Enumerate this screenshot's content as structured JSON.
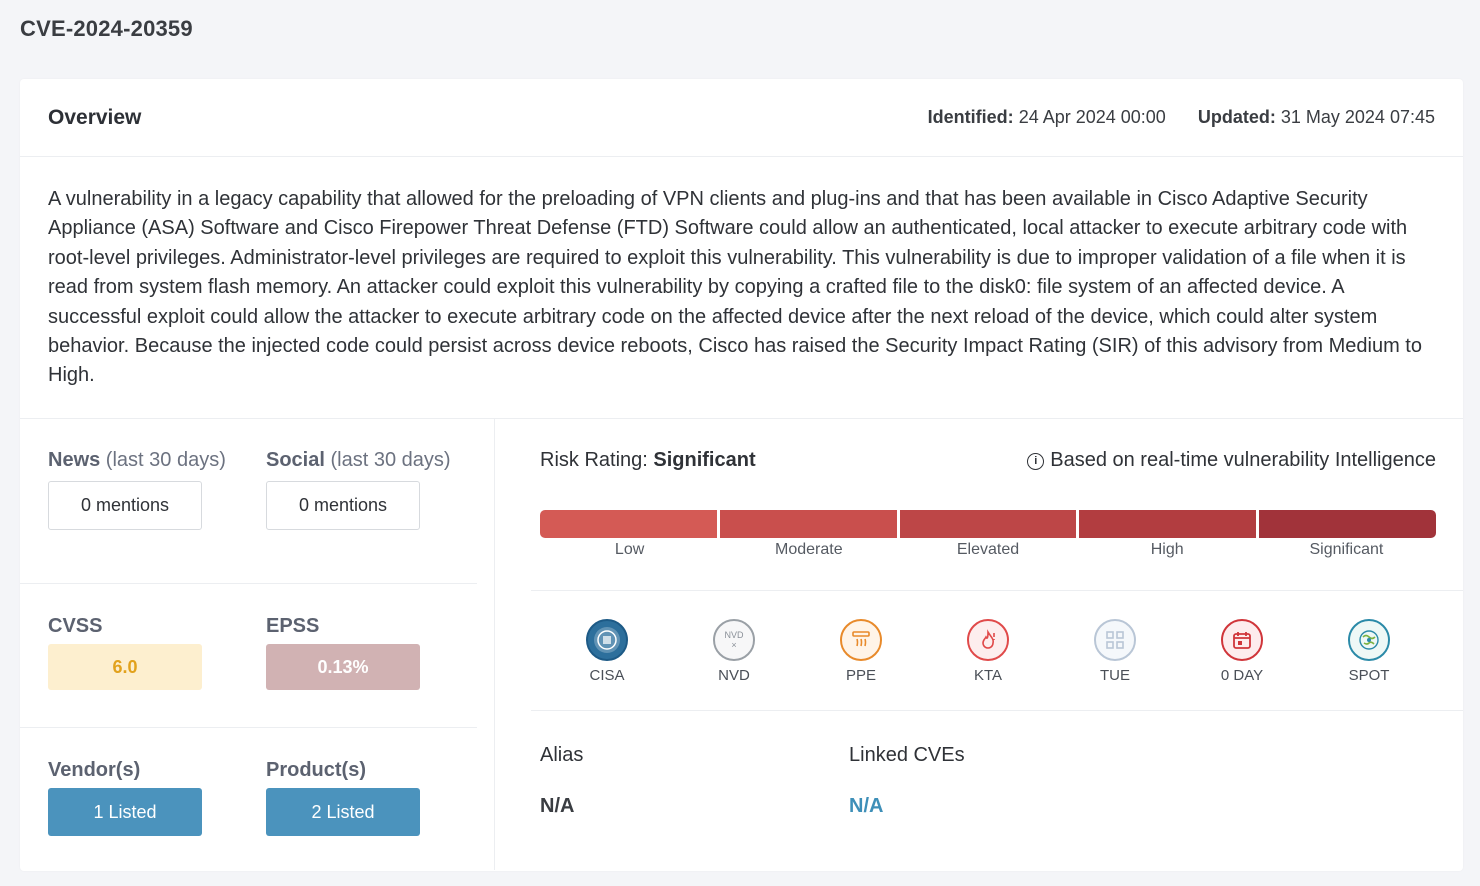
{
  "page": {
    "title": "CVE-2024-20359"
  },
  "overview": {
    "title": "Overview",
    "identified_label": "Identified:",
    "identified_value": "24 Apr 2024 00:00",
    "updated_label": "Updated:",
    "updated_value": "31 May 2024 07:45",
    "description": "A vulnerability in a legacy capability that allowed for the preloading of VPN clients and plug-ins and that has been available in Cisco Adaptive Security Appliance (ASA) Software and Cisco Firepower Threat Defense (FTD) Software could allow an authenticated, local attacker to execute arbitrary code with root-level privileges. Administrator-level privileges are required to exploit this vulnerability. This vulnerability is due to improper validation of a file when it is read from system flash memory. An attacker could exploit this vulnerability by copying a crafted file to the disk0: file system of an affected device. A successful exploit could allow the attacker to execute arbitrary code on the affected device after the next reload of the device, which could alter system behavior. Because the injected code could persist across device reboots, Cisco has raised the Security Impact Rating (SIR) of this advisory from Medium to High."
  },
  "mentions": {
    "news_label": "News",
    "news_suffix": " (last 30 days)",
    "news_value": "0 mentions",
    "social_label": "Social",
    "social_suffix": " (last 30 days)",
    "social_value": "0 mentions"
  },
  "scores": {
    "cvss_label": "CVSS",
    "cvss_value": "6.0",
    "epss_label": "EPSS",
    "epss_value": "0.13%"
  },
  "vendors": {
    "vendor_label": "Vendor(s)",
    "vendor_value": "1 Listed",
    "product_label": "Product(s)",
    "product_value": "2 Listed"
  },
  "risk": {
    "label": "Risk Rating:",
    "value": "Significant",
    "info_text": "Based on real-time vulnerability Intelligence",
    "levels": [
      "Low",
      "Moderate",
      "Elevated",
      "High",
      "Significant"
    ],
    "colors": [
      "#d45a55",
      "#c94f4d",
      "#bd4647",
      "#b23d40",
      "#a1333a"
    ]
  },
  "sources": [
    {
      "name": "CISA",
      "icon": "cisa-seal-icon",
      "color": "#1d5a86"
    },
    {
      "name": "NVD",
      "icon": "nvd-icon",
      "color": "#9aa0a6"
    },
    {
      "name": "PPE",
      "icon": "ppe-icon",
      "color": "#e88a2b"
    },
    {
      "name": "KTA",
      "icon": "kta-flame-icon",
      "color": "#e04a4a"
    },
    {
      "name": "TUE",
      "icon": "tue-grid-icon",
      "color": "#b9c6d6"
    },
    {
      "name": "0 DAY",
      "icon": "calendar-icon",
      "color": "#d0353a"
    },
    {
      "name": "SPOT",
      "icon": "spot-globe-icon",
      "color": "#2b8aa8"
    }
  ],
  "alias": {
    "label": "Alias",
    "value": "N/A"
  },
  "linked": {
    "label": "Linked CVEs",
    "value": "N/A"
  }
}
